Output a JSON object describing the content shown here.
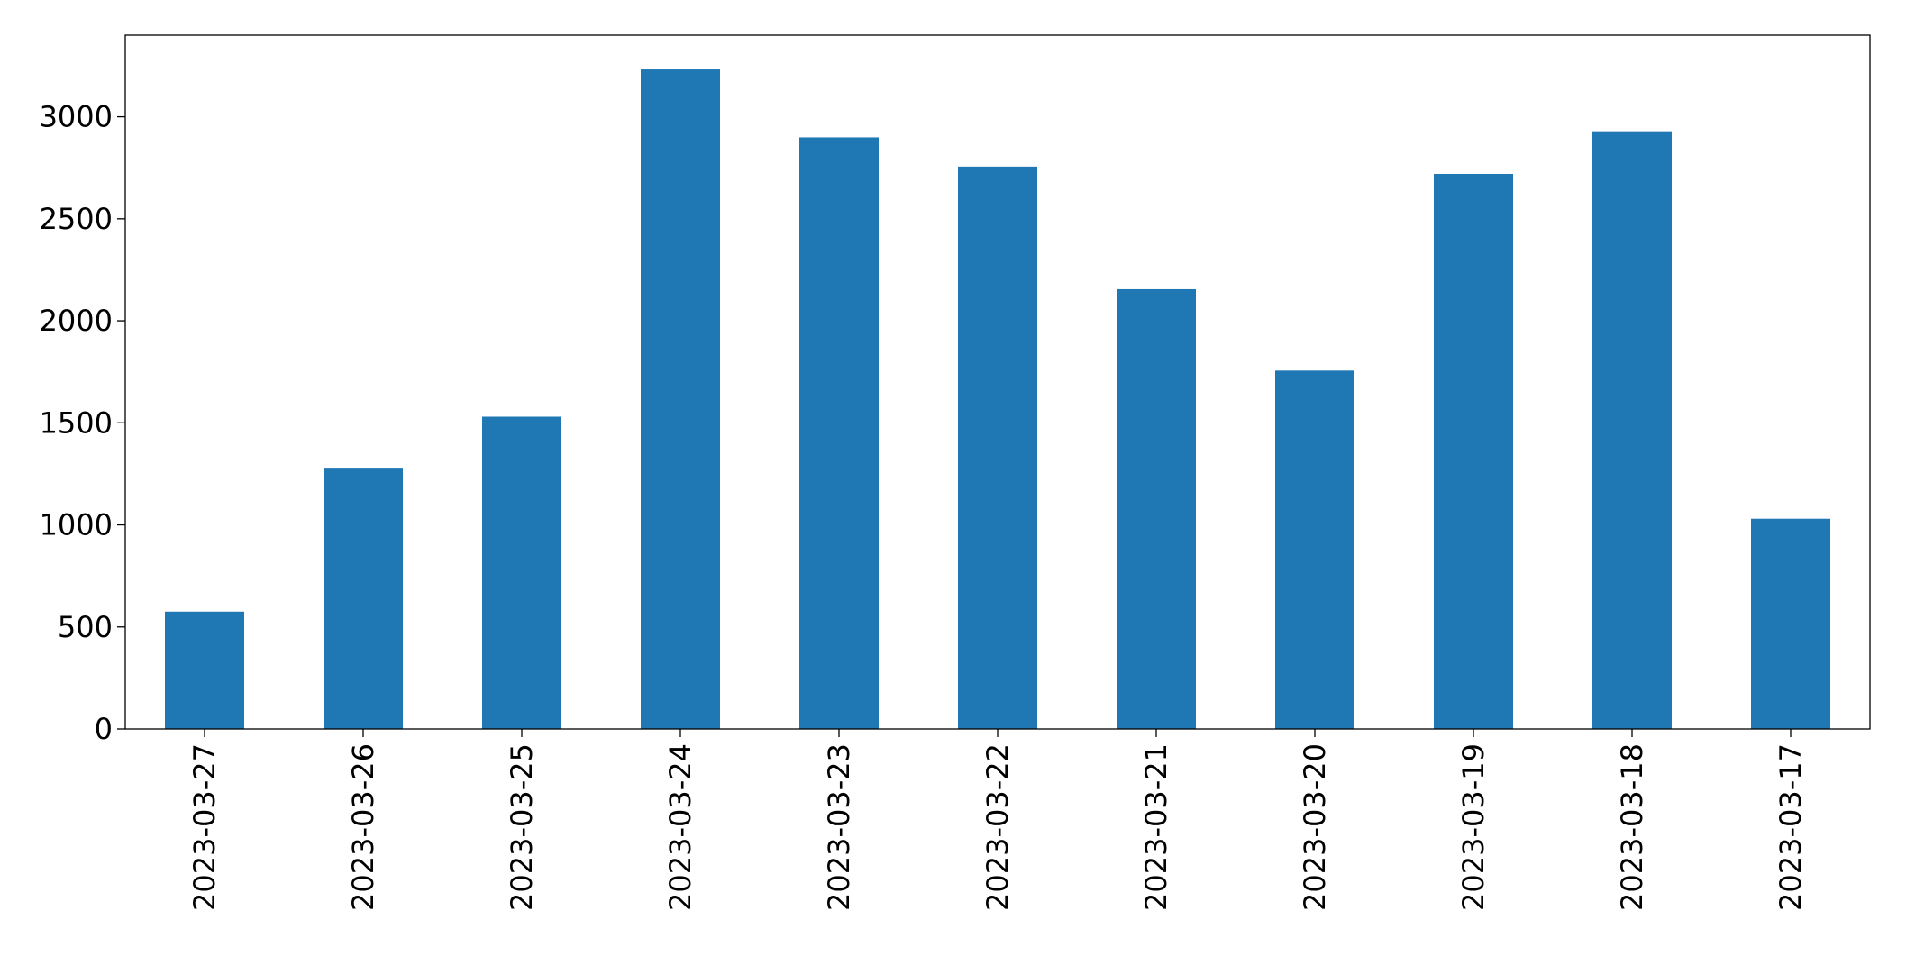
{
  "chart_data": {
    "type": "bar",
    "categories": [
      "2023-03-27",
      "2023-03-26",
      "2023-03-25",
      "2023-03-24",
      "2023-03-23",
      "2023-03-22",
      "2023-03-21",
      "2023-03-20",
      "2023-03-19",
      "2023-03-18",
      "2023-03-17"
    ],
    "values": [
      575,
      1280,
      1530,
      3232,
      2899,
      2756,
      2155,
      1756,
      2720,
      2929,
      1030
    ],
    "color": "#1f77b4",
    "ylim": [
      0,
      3400
    ],
    "yticks": [
      0,
      500,
      1000,
      1500,
      2000,
      2500,
      3000
    ],
    "grid": false
  }
}
